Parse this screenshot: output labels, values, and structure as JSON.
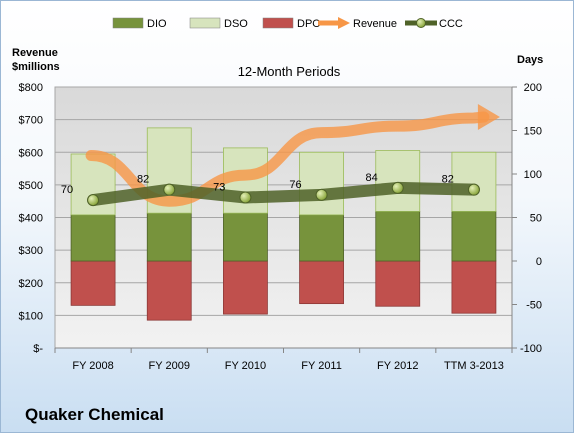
{
  "chart_data": {
    "type": "bar",
    "title": "12-Month Periods",
    "company": "Quaker Chemical",
    "left_axis_label": [
      "Revenue",
      "$millions"
    ],
    "right_axis_label": "Days",
    "categories": [
      "FY 2008",
      "FY 2009",
      "FY 2010",
      "FY 2011",
      "FY 2012",
      "TTM 3-2013"
    ],
    "left_axis": {
      "ylim": [
        0,
        800
      ],
      "ticks": [
        800,
        700,
        600,
        500,
        400,
        300,
        200,
        100,
        0
      ],
      "tick_labels": [
        "$800",
        "$700",
        "$600",
        "$500",
        "$400",
        "$300",
        "$200",
        "$100",
        "$-"
      ]
    },
    "right_axis": {
      "ylim": [
        -100,
        200
      ],
      "ticks": [
        200,
        150,
        100,
        50,
        0,
        -50,
        -100
      ],
      "tick_labels": [
        "200",
        "150",
        "100",
        "50",
        "0",
        "-50",
        "-100"
      ]
    },
    "series": [
      {
        "name": "DIO",
        "type": "stacked-bar",
        "axis": "right",
        "color": "#77933c",
        "values": [
          53,
          55,
          55,
          53,
          57,
          57
        ]
      },
      {
        "name": "DSO",
        "type": "stacked-bar",
        "axis": "right",
        "color": "#d7e4bd",
        "values": [
          70,
          98,
          75,
          72,
          70,
          68
        ]
      },
      {
        "name": "DPO",
        "type": "stacked-bar-negative",
        "axis": "right",
        "color": "#c0504d",
        "values": [
          -51,
          -68,
          -61,
          -49,
          -52,
          -60
        ]
      },
      {
        "name": "Revenue",
        "type": "arrow-line",
        "axis": "left",
        "color": "#f79646",
        "values": [
          590,
          450,
          530,
          660,
          680,
          705
        ]
      },
      {
        "name": "CCC",
        "type": "line",
        "axis": "right",
        "color": "#4f6228",
        "values": [
          70,
          82,
          73,
          76,
          84,
          82
        ],
        "labels": [
          "70",
          "82",
          "73",
          "76",
          "84",
          "82"
        ]
      }
    ],
    "grid": true,
    "legend_position": "top"
  }
}
